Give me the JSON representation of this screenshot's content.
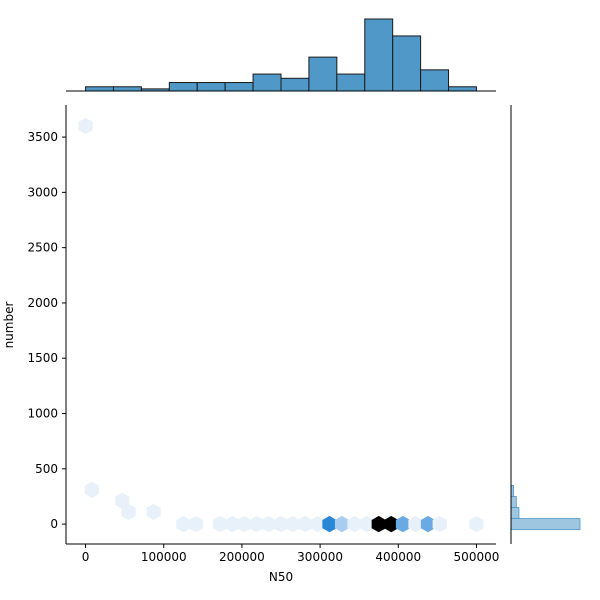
{
  "chart_data": {
    "type": "hexbin-joint",
    "title": "",
    "xlabel": "N50",
    "ylabel": "number",
    "xlim": [
      -25000,
      525000
    ],
    "ylim": [
      -180,
      3790
    ],
    "x_ticks": [
      0,
      100000,
      200000,
      300000,
      400000,
      500000
    ],
    "x_tick_labels": [
      "0",
      "100000",
      "200000",
      "300000",
      "400000",
      "500000"
    ],
    "y_ticks": [
      0,
      500,
      1000,
      1500,
      2000,
      2500,
      3000,
      3500
    ],
    "y_tick_labels": [
      "0",
      "500",
      "1000",
      "1500",
      "2000",
      "2500",
      "3000",
      "3500"
    ],
    "grid": false,
    "colors": {
      "hist_fill": "#5098c8",
      "hist_edge": "#1a1a1a",
      "hex_low": "#e8f1fa",
      "hex_mid": "#2a86d6",
      "hex_high": "#000000"
    },
    "hexbins": [
      {
        "x": 0,
        "y": 3600,
        "count": 1
      },
      {
        "x": 8000,
        "y": 310,
        "count": 1
      },
      {
        "x": 47000,
        "y": 210,
        "count": 1
      },
      {
        "x": 55000,
        "y": 110,
        "count": 1
      },
      {
        "x": 87000,
        "y": 110,
        "count": 1
      },
      {
        "x": 125000,
        "y": 0,
        "count": 1
      },
      {
        "x": 141000,
        "y": 0,
        "count": 1
      },
      {
        "x": 172000,
        "y": 0,
        "count": 1
      },
      {
        "x": 188000,
        "y": 0,
        "count": 1
      },
      {
        "x": 203000,
        "y": 0,
        "count": 1
      },
      {
        "x": 219000,
        "y": 0,
        "count": 1
      },
      {
        "x": 234000,
        "y": 0,
        "count": 1
      },
      {
        "x": 250000,
        "y": 0,
        "count": 1
      },
      {
        "x": 265000,
        "y": 0,
        "count": 1
      },
      {
        "x": 281000,
        "y": 0,
        "count": 1
      },
      {
        "x": 297000,
        "y": 0,
        "count": 1
      },
      {
        "x": 312000,
        "y": 0,
        "count": 4
      },
      {
        "x": 328000,
        "y": 0,
        "count": 2
      },
      {
        "x": 344000,
        "y": 0,
        "count": 1
      },
      {
        "x": 360000,
        "y": 0,
        "count": 1
      },
      {
        "x": 375000,
        "y": 0,
        "count": 6
      },
      {
        "x": 391000,
        "y": 0,
        "count": 6
      },
      {
        "x": 406000,
        "y": 0,
        "count": 3
      },
      {
        "x": 422000,
        "y": 0,
        "count": 1
      },
      {
        "x": 438000,
        "y": 0,
        "count": 3
      },
      {
        "x": 453000,
        "y": 0,
        "count": 1
      },
      {
        "x": 500000,
        "y": 0,
        "count": 1
      }
    ],
    "hex_max_count": 6,
    "x_marginal_histogram": {
      "bin_edges": [
        0,
        35714,
        71429,
        107143,
        142857,
        178571,
        214286,
        250000,
        285714,
        321429,
        357143,
        392857,
        428571,
        464286,
        500000
      ],
      "counts": [
        1,
        1,
        0.5,
        2,
        2,
        2,
        4,
        3,
        8,
        4,
        17,
        13,
        5,
        1
      ]
    },
    "y_marginal_histogram": {
      "bins": [
        {
          "y0": -50,
          "y1": 50,
          "count": 26
        },
        {
          "y0": 50,
          "y1": 150,
          "count": 3
        },
        {
          "y0": 150,
          "y1": 250,
          "count": 2
        },
        {
          "y0": 250,
          "y1": 350,
          "count": 1
        }
      ]
    }
  }
}
